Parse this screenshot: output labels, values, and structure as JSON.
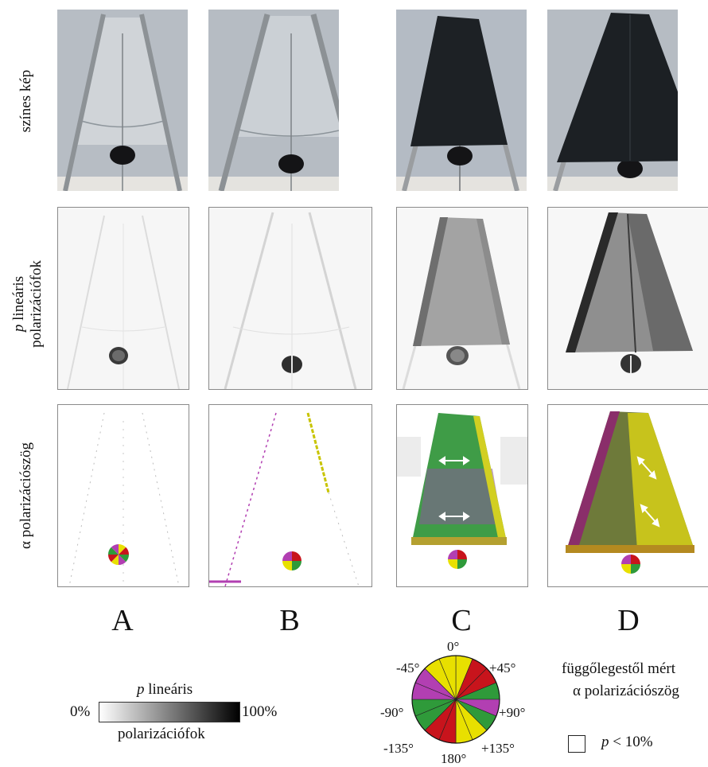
{
  "row_labels": {
    "color_image": "színes kép",
    "linear_polarization": {
      "symbol": "p",
      "line1": "lineáris",
      "line2": "polarizációfok"
    },
    "angle_of_polarization": "α polarizációszög"
  },
  "column_labels": [
    "A",
    "B",
    "C",
    "D"
  ],
  "gray_scale": {
    "title_symbol": "p",
    "title_word": "lineáris",
    "min_label": "0%",
    "max_label": "100%",
    "bottom_label": "polarizációfok"
  },
  "color_wheel": {
    "degree_labels": [
      "0°",
      "+45°",
      "+90°",
      "+135°",
      "180°",
      "-135°",
      "-90°",
      "-45°"
    ]
  },
  "legend": {
    "title_line1": "függőlegestől mért",
    "title_line2": "α polarizációszög",
    "threshold_symbol": "p",
    "threshold_text": "< 10%"
  },
  "colors": {
    "gray": "#bfc1c4",
    "yellow": "#e8e000",
    "green": "#2f9a3a",
    "magenta": "#b23fb2",
    "red": "#c8141c",
    "dark_sheet": "#1d2125"
  }
}
